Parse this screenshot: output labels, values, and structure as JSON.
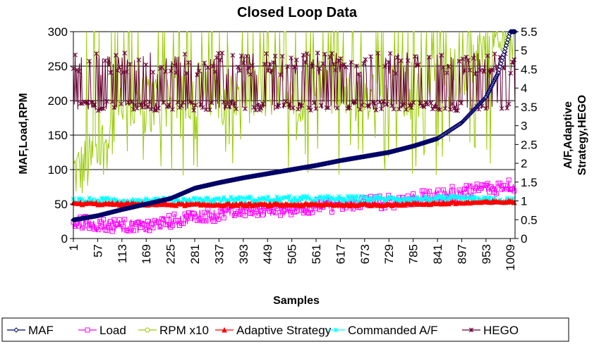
{
  "chart_data": {
    "type": "line",
    "title": "Closed Loop Data",
    "xlabel": "Samples",
    "ylabel_left": "MAF,Load,RPM",
    "ylabel_right_line1": "A/F,Adaptive",
    "ylabel_right_line2": "Strategy,HEGO",
    "x_ticks": [
      "1",
      "57",
      "113",
      "169",
      "225",
      "281",
      "337",
      "393",
      "449",
      "505",
      "561",
      "617",
      "673",
      "729",
      "785",
      "841",
      "897",
      "953",
      "1009"
    ],
    "y_left_ticks": [
      "0",
      "50",
      "100",
      "150",
      "200",
      "250",
      "300"
    ],
    "y_right_ticks": [
      "0",
      "0.5",
      "1",
      "1.5",
      "2",
      "2.5",
      "3",
      "3.5",
      "4",
      "4.5",
      "5",
      "5.5"
    ],
    "xlim": [
      1,
      1020
    ],
    "ylim_left": [
      0,
      300
    ],
    "ylim_right": [
      0,
      5.5
    ],
    "grid": "horizontal",
    "legend_position": "bottom",
    "series": [
      {
        "name": "MAF",
        "axis": "left",
        "color": "#000066",
        "marker": "diamond",
        "points": [
          [
            1,
            27
          ],
          [
            57,
            33
          ],
          [
            113,
            42
          ],
          [
            169,
            50
          ],
          [
            225,
            58
          ],
          [
            281,
            73
          ],
          [
            337,
            81
          ],
          [
            393,
            88
          ],
          [
            449,
            94
          ],
          [
            505,
            100
          ],
          [
            561,
            106
          ],
          [
            617,
            113
          ],
          [
            673,
            119
          ],
          [
            729,
            125
          ],
          [
            785,
            134
          ],
          [
            841,
            145
          ],
          [
            897,
            168
          ],
          [
            953,
            205
          ],
          [
            981,
            240
          ],
          [
            1009,
            300
          ]
        ]
      },
      {
        "name": "Load",
        "axis": "left",
        "color": "#ff00ff",
        "marker": "square",
        "points": [
          [
            1,
            25
          ],
          [
            57,
            20
          ],
          [
            113,
            19
          ],
          [
            169,
            17
          ],
          [
            225,
            25
          ],
          [
            281,
            32
          ],
          [
            337,
            35
          ],
          [
            393,
            40
          ],
          [
            449,
            42
          ],
          [
            505,
            43
          ],
          [
            561,
            48
          ],
          [
            617,
            48
          ],
          [
            673,
            53
          ],
          [
            729,
            53
          ],
          [
            785,
            58
          ],
          [
            841,
            62
          ],
          [
            897,
            68
          ],
          [
            953,
            73
          ],
          [
            1009,
            77
          ]
        ],
        "noise": 10
      },
      {
        "name": "RPM x10",
        "axis": "left",
        "color": "#99cc00",
        "marker": "circle",
        "points": [
          [
            1,
            97
          ],
          [
            20,
            100
          ],
          [
            57,
            120
          ],
          [
            113,
            185
          ],
          [
            169,
            195
          ],
          [
            225,
            205
          ],
          [
            281,
            215
          ],
          [
            337,
            210
          ],
          [
            393,
            210
          ],
          [
            449,
            215
          ],
          [
            505,
            210
          ],
          [
            561,
            215
          ],
          [
            617,
            215
          ],
          [
            673,
            210
          ],
          [
            729,
            215
          ],
          [
            785,
            215
          ],
          [
            841,
            225
          ],
          [
            897,
            240
          ],
          [
            953,
            270
          ],
          [
            1009,
            290
          ]
        ],
        "noise": 45
      },
      {
        "name": "Adaptive Strategy",
        "axis": "right",
        "color": "#ff0000",
        "marker": "triangle",
        "points": [
          [
            1,
            0.93
          ],
          [
            281,
            0.9
          ],
          [
            505,
            0.9
          ],
          [
            729,
            0.9
          ],
          [
            897,
            0.95
          ],
          [
            1009,
            0.98
          ]
        ],
        "noise": 0.03
      },
      {
        "name": "Commanded A/F",
        "axis": "right",
        "color": "#00ffff",
        "marker": "star",
        "points": [
          [
            1,
            1.0
          ],
          [
            281,
            1.02
          ],
          [
            505,
            1.05
          ],
          [
            729,
            1.05
          ],
          [
            897,
            1.05
          ],
          [
            1009,
            1.0
          ]
        ],
        "noise": 0.08
      },
      {
        "name": "HEGO",
        "axis": "right",
        "color": "#660033",
        "marker": "asterisk",
        "points": [
          [
            1,
            3.5
          ],
          [
            1009,
            3.5
          ]
        ],
        "low": 3.4,
        "high": 4.95
      }
    ]
  }
}
